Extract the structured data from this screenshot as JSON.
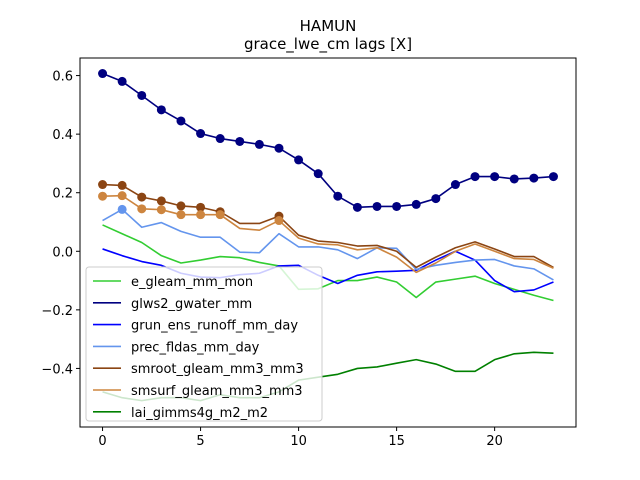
{
  "chart_data": {
    "type": "line",
    "title": "HAMUN",
    "subtitle": "grace_lwe_cm lags [X]",
    "xlabel": "",
    "ylabel": "",
    "xlim": [
      -1.15,
      24.15
    ],
    "ylim": [
      -0.6,
      0.66
    ],
    "xticks": [
      0,
      5,
      10,
      15,
      20
    ],
    "yticks": [
      -0.4,
      -0.2,
      0.0,
      0.2,
      0.4,
      0.6
    ],
    "ytick_labels": [
      "−0.4",
      "−0.2",
      "0.0",
      "0.2",
      "0.4",
      "0.6"
    ],
    "grid": false,
    "legend_position": "lower-left",
    "x": [
      0,
      1,
      2,
      3,
      4,
      5,
      6,
      7,
      8,
      9,
      10,
      11,
      12,
      13,
      14,
      15,
      16,
      17,
      18,
      19,
      20,
      21,
      22,
      23
    ],
    "series": [
      {
        "name": "e_gleam_mm_mon",
        "color": "#32cd32",
        "values": [
          0.09,
          0.06,
          0.03,
          -0.015,
          -0.04,
          -0.03,
          -0.018,
          -0.022,
          -0.038,
          -0.05,
          -0.13,
          -0.128,
          -0.1,
          -0.1,
          -0.088,
          -0.105,
          -0.158,
          -0.105,
          -0.095,
          -0.085,
          -0.11,
          -0.13,
          -0.15,
          -0.168
        ],
        "markers": []
      },
      {
        "name": "glws2_gwater_mm",
        "color": "#000080",
        "values": [
          0.607,
          0.58,
          0.532,
          0.483,
          0.445,
          0.402,
          0.385,
          0.375,
          0.365,
          0.352,
          0.312,
          0.265,
          0.188,
          0.15,
          0.153,
          0.153,
          0.16,
          0.18,
          0.228,
          0.255,
          0.255,
          0.247,
          0.25,
          0.255
        ],
        "markers": [
          0,
          1,
          2,
          3,
          4,
          5,
          6,
          7,
          8,
          9,
          10,
          11,
          12,
          13,
          14,
          15,
          16,
          17,
          18,
          19,
          20,
          21,
          22,
          23
        ]
      },
      {
        "name": "grun_ens_runoff_mm_day",
        "color": "#0000ff",
        "values": [
          0.008,
          -0.015,
          -0.035,
          -0.048,
          -0.075,
          -0.088,
          -0.09,
          -0.08,
          -0.075,
          -0.05,
          -0.048,
          -0.082,
          -0.11,
          -0.082,
          -0.07,
          -0.068,
          -0.065,
          -0.03,
          0.0,
          -0.03,
          -0.1,
          -0.138,
          -0.132,
          -0.105
        ],
        "markers": []
      },
      {
        "name": "prec_fldas_mm_day",
        "color": "#6495ed",
        "values": [
          0.105,
          0.143,
          0.082,
          0.098,
          0.068,
          0.048,
          0.048,
          -0.003,
          -0.005,
          0.06,
          0.015,
          0.015,
          0.005,
          -0.025,
          0.012,
          0.01,
          -0.062,
          -0.048,
          -0.038,
          -0.03,
          -0.028,
          -0.05,
          -0.06,
          -0.098
        ],
        "markers": [
          1
        ]
      },
      {
        "name": "smroot_gleam_mm3_mm3",
        "color": "#8b4513",
        "values": [
          0.228,
          0.225,
          0.185,
          0.172,
          0.155,
          0.15,
          0.135,
          0.095,
          0.095,
          0.12,
          0.055,
          0.035,
          0.03,
          0.018,
          0.02,
          0.0,
          -0.055,
          -0.02,
          0.012,
          0.032,
          0.008,
          -0.018,
          -0.018,
          -0.055
        ],
        "markers": [
          0,
          1,
          2,
          3,
          4,
          5,
          6,
          9
        ]
      },
      {
        "name": "smsurf_gleam_mm3_mm3",
        "color": "#cd853f",
        "values": [
          0.188,
          0.19,
          0.145,
          0.142,
          0.125,
          0.125,
          0.125,
          0.078,
          0.072,
          0.105,
          0.045,
          0.025,
          0.022,
          0.005,
          0.012,
          -0.02,
          -0.072,
          -0.04,
          0.0,
          0.025,
          0.0,
          -0.025,
          -0.028,
          -0.058
        ],
        "markers": [
          0,
          1,
          2,
          3,
          4,
          5,
          6,
          9
        ]
      },
      {
        "name": "lai_gimms4g_m2_m2",
        "color": "#008000",
        "values": [
          -0.48,
          -0.5,
          -0.51,
          -0.5,
          -0.5,
          -0.51,
          -0.49,
          -0.5,
          -0.5,
          -0.48,
          -0.44,
          -0.43,
          -0.42,
          -0.4,
          -0.395,
          -0.382,
          -0.37,
          -0.385,
          -0.41,
          -0.41,
          -0.37,
          -0.35,
          -0.345,
          -0.348
        ],
        "markers": []
      }
    ]
  }
}
